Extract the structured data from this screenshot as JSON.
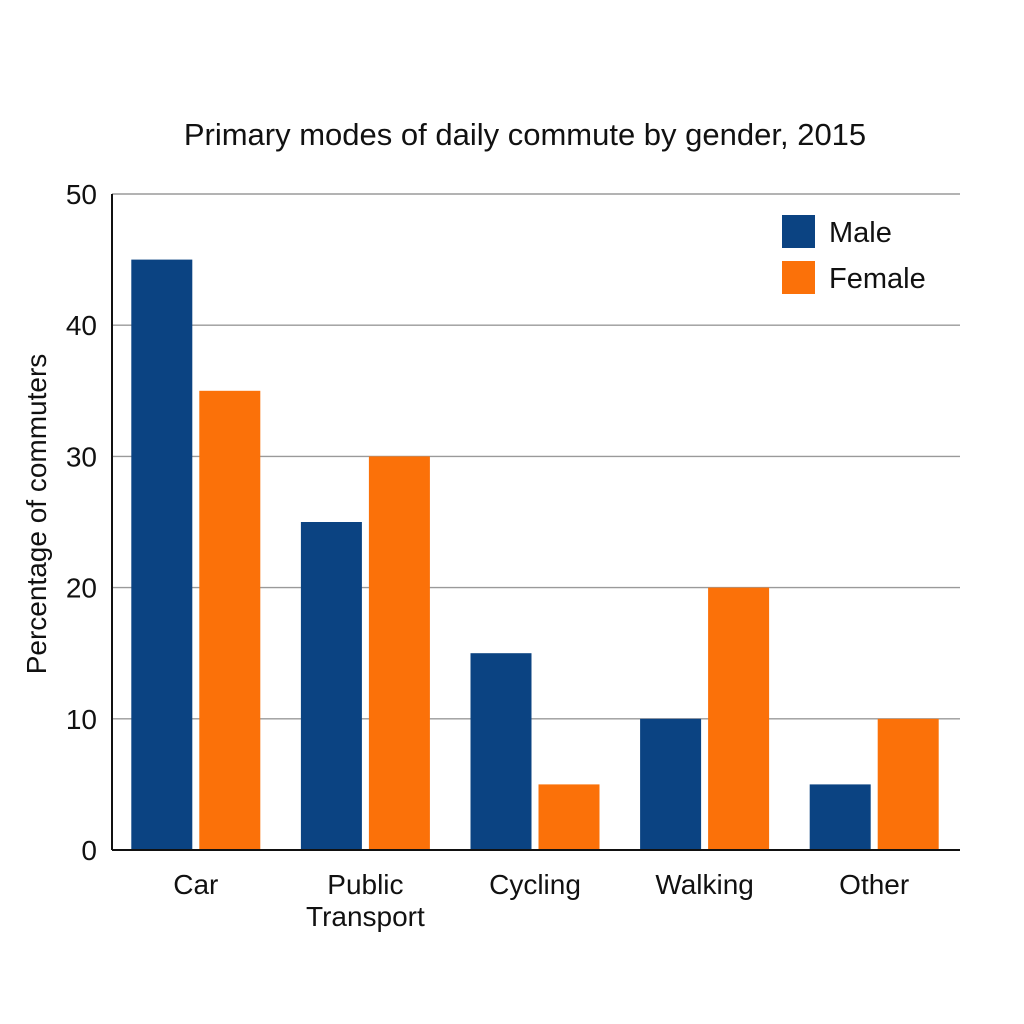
{
  "chart_data": {
    "type": "bar",
    "title": "Primary modes of daily commute by gender, 2015",
    "xlabel": "",
    "ylabel": "Percentage of commuters",
    "categories": [
      "Car",
      "Public Transport",
      "Cycling",
      "Walking",
      "Other"
    ],
    "category_lines": [
      [
        "Car"
      ],
      [
        "Public",
        "Transport"
      ],
      [
        "Cycling"
      ],
      [
        "Walking"
      ],
      [
        "Other"
      ]
    ],
    "series": [
      {
        "name": "Male",
        "values": [
          45,
          25,
          15,
          10,
          5
        ],
        "color": "#0b4382"
      },
      {
        "name": "Female",
        "values": [
          35,
          30,
          5,
          20,
          10
        ],
        "color": "#fb7109"
      }
    ],
    "ylim": [
      0,
      50
    ],
    "yticks": [
      0,
      10,
      20,
      30,
      40,
      50
    ],
    "grid": true,
    "legend_position": "top-right"
  }
}
